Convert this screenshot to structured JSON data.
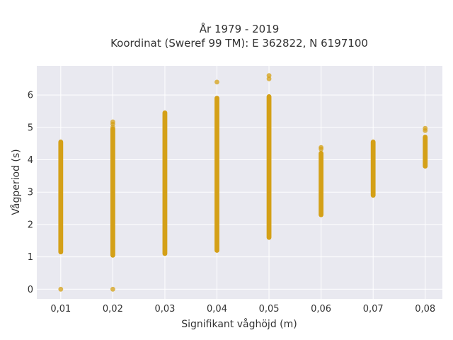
{
  "chart_data": {
    "type": "scatter",
    "title_lines": [
      "År 1979 - 2019",
      "Koordinat (Sweref 99 TM): E 362822, N 6197100"
    ],
    "xlabel": "Signifikant våghöjd (m)",
    "ylabel": "Vågperiod (s)",
    "x_tick_labels": [
      "0,01",
      "0,02",
      "0,03",
      "0,04",
      "0,05",
      "0,06",
      "0,07",
      "0,08"
    ],
    "x_tick_values": [
      0.01,
      0.02,
      0.03,
      0.04,
      0.05,
      0.06,
      0.07,
      0.08
    ],
    "y_tick_labels": [
      "0",
      "1",
      "2",
      "3",
      "4",
      "5",
      "6"
    ],
    "y_tick_values": [
      0,
      1,
      2,
      3,
      4,
      5,
      6
    ],
    "xlim": [
      0.0054,
      0.0833
    ],
    "ylim": [
      -0.3,
      6.9
    ],
    "grid": true,
    "marker_color": "#d4a017",
    "plot_bg": "#e9e9f0",
    "grid_color": "#ffffff",
    "columns": [
      {
        "x": 0.01,
        "ranges": [
          [
            1.15,
            4.55
          ]
        ],
        "points": [
          0.0
        ]
      },
      {
        "x": 0.02,
        "ranges": [
          [
            1.05,
            4.95
          ]
        ],
        "points": [
          0.0,
          5.0,
          5.1,
          5.17
        ]
      },
      {
        "x": 0.03,
        "ranges": [
          [
            1.1,
            5.45
          ]
        ],
        "points": []
      },
      {
        "x": 0.04,
        "ranges": [
          [
            1.2,
            5.9
          ]
        ],
        "points": [
          6.4
        ]
      },
      {
        "x": 0.05,
        "ranges": [
          [
            1.6,
            5.95
          ]
        ],
        "points": [
          6.5,
          6.6
        ]
      },
      {
        "x": 0.06,
        "ranges": [
          [
            2.3,
            4.2
          ]
        ],
        "points": [
          4.33,
          4.38
        ]
      },
      {
        "x": 0.07,
        "ranges": [
          [
            2.9,
            4.55
          ]
        ],
        "points": []
      },
      {
        "x": 0.08,
        "ranges": [
          [
            3.8,
            4.7
          ]
        ],
        "points": [
          4.9,
          4.97
        ]
      }
    ]
  }
}
